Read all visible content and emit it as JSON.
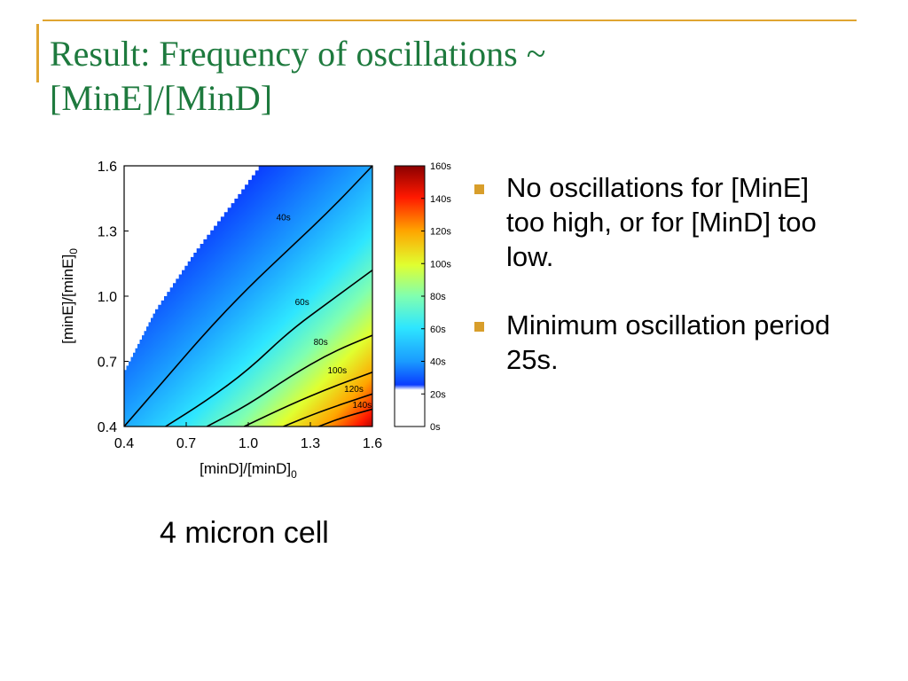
{
  "slide": {
    "title_line1": "Result: Frequency of oscillations  ~",
    "title_line2": "[MinE]/[MinD]",
    "caption": "4 micron cell",
    "accent_color": "#e0a531",
    "title_color": "#1e7a3e",
    "bullets": [
      {
        "text": "No oscillations for [MinE] too high, or for [MinD] too low."
      },
      {
        "text": "Minimum oscillation period 25s."
      }
    ]
  },
  "chart_data": {
    "type": "heatmap",
    "title": "",
    "xlabel": "[minD]/[minD]",
    "xlabel_sub": "0",
    "ylabel": "[minE]/[minE]",
    "ylabel_sub": "0",
    "xlim": [
      0.4,
      1.6
    ],
    "ylim": [
      0.4,
      1.6
    ],
    "x_ticks": [
      "0.4",
      "0.7",
      "1.0",
      "1.3",
      "1.6"
    ],
    "y_ticks": [
      "0.4",
      "0.7",
      "1.0",
      "1.3",
      "1.6"
    ],
    "no_oscillation_boundary": [
      {
        "x": 0.4,
        "y": 0.66
      },
      {
        "x": 0.55,
        "y": 0.94
      },
      {
        "x": 0.75,
        "y": 1.22
      },
      {
        "x": 0.95,
        "y": 1.47
      },
      {
        "x": 1.05,
        "y": 1.6
      }
    ],
    "contours": [
      {
        "label": "40s",
        "level": 40,
        "label_at": [
          1.17,
          1.35
        ],
        "points": [
          [
            0.4,
            0.4
          ],
          [
            0.6,
            0.62
          ],
          [
            0.8,
            0.84
          ],
          [
            1.0,
            1.04
          ],
          [
            1.2,
            1.22
          ],
          [
            1.4,
            1.4
          ],
          [
            1.6,
            1.6
          ]
        ]
      },
      {
        "label": "60s",
        "level": 60,
        "label_at": [
          1.26,
          0.96
        ],
        "points": [
          [
            0.6,
            0.4
          ],
          [
            0.8,
            0.52
          ],
          [
            1.0,
            0.66
          ],
          [
            1.2,
            0.84
          ],
          [
            1.4,
            0.98
          ],
          [
            1.6,
            1.12
          ]
        ]
      },
      {
        "label": "80s",
        "level": 80,
        "label_at": [
          1.35,
          0.775
        ],
        "points": [
          [
            0.8,
            0.4
          ],
          [
            1.0,
            0.5
          ],
          [
            1.2,
            0.63
          ],
          [
            1.4,
            0.74
          ],
          [
            1.6,
            0.82
          ]
        ]
      },
      {
        "label": "100s",
        "level": 100,
        "label_at": [
          1.43,
          0.645
        ],
        "points": [
          [
            0.98,
            0.4
          ],
          [
            1.2,
            0.5
          ],
          [
            1.4,
            0.58
          ],
          [
            1.6,
            0.65
          ]
        ]
      },
      {
        "label": "120s",
        "level": 120,
        "label_at": [
          1.51,
          0.56
        ],
        "points": [
          [
            1.17,
            0.4
          ],
          [
            1.35,
            0.47
          ],
          [
            1.6,
            0.55
          ]
        ]
      },
      {
        "label": "140s",
        "level": 140,
        "label_at": [
          1.55,
          0.485
        ],
        "points": [
          [
            1.34,
            0.4
          ],
          [
            1.45,
            0.44
          ],
          [
            1.6,
            0.48
          ]
        ]
      }
    ],
    "colorbar": {
      "range": [
        0,
        160
      ],
      "ticks": [
        "0s",
        "20s",
        "40s",
        "60s",
        "80s",
        "100s",
        "120s",
        "140s",
        "160s"
      ],
      "colors": [
        "#ffffff",
        "#0a3cff",
        "#1a9bff",
        "#2ee6ff",
        "#80ffb0",
        "#e0ff30",
        "#ffa500",
        "#ff1800",
        "#8b0000"
      ]
    }
  }
}
